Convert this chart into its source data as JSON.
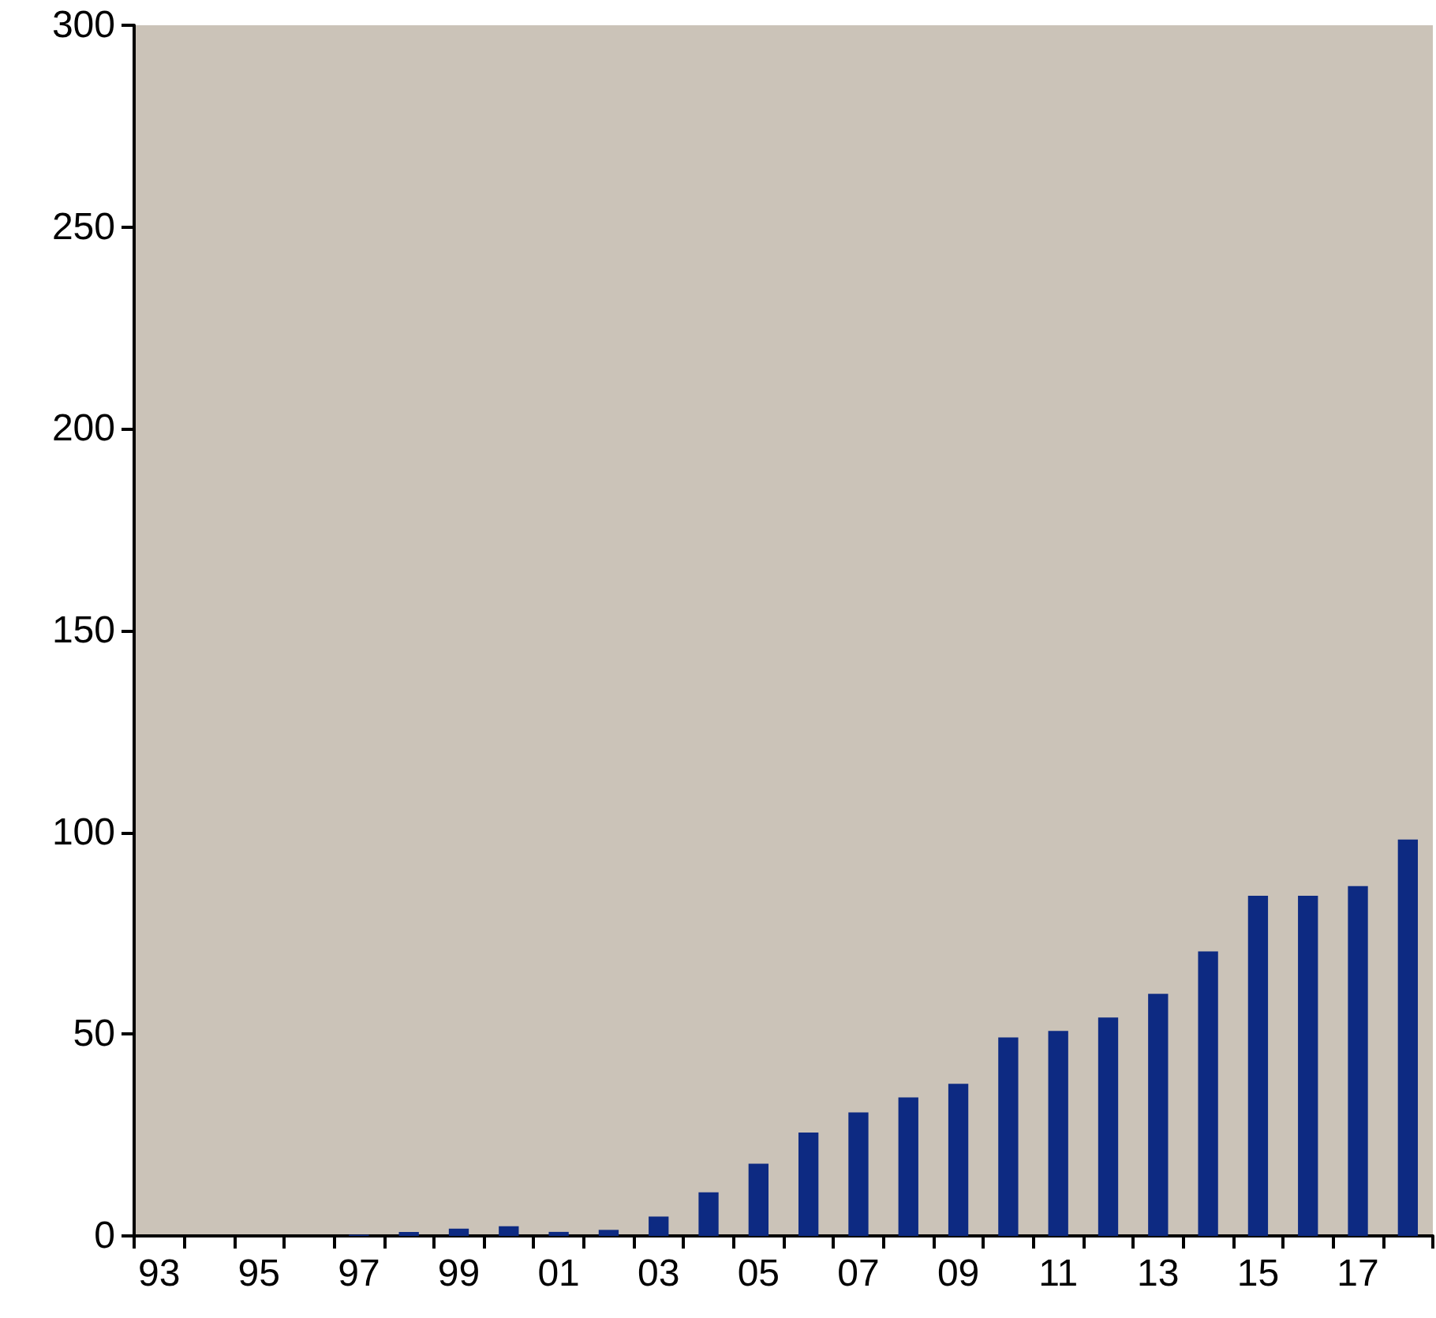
{
  "chart_data": {
    "type": "bar",
    "categories": [
      "93",
      null,
      "95",
      null,
      "97",
      null,
      "99",
      null,
      "01",
      null,
      "03",
      null,
      "05",
      null,
      "07",
      null,
      "09",
      null,
      "11",
      null,
      "13",
      null,
      "15",
      null,
      "17",
      null
    ],
    "values": [
      0,
      0,
      0,
      0,
      0.3,
      1,
      1.8,
      2.4,
      1,
      1.5,
      4.8,
      10.8,
      17.9,
      25.6,
      30.6,
      34.3,
      37.7,
      49.2,
      50.8,
      54.1,
      60,
      70.5,
      84.3,
      84.3,
      86.7,
      98.2
    ],
    "color": "#0d2a82",
    "ylim": [
      0,
      300
    ],
    "yticks": [
      0,
      50,
      100,
      150,
      200,
      250,
      300
    ],
    "grid": false
  }
}
